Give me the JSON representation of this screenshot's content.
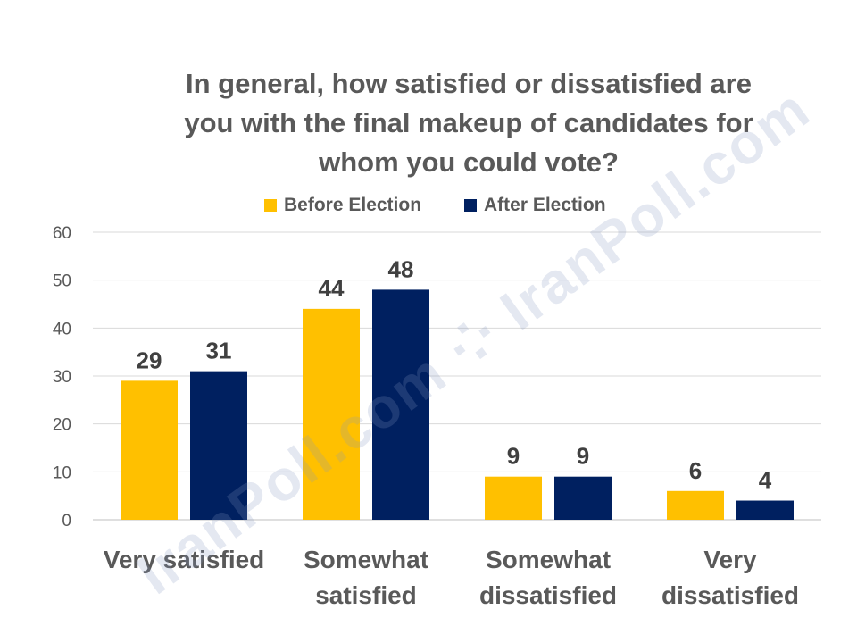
{
  "chart_data": {
    "type": "bar",
    "title_lines": [
      "In general, how satisfied or dissatisfied are",
      "you with the final makeup of candidates for",
      "whom you could vote?"
    ],
    "categories": [
      [
        "Very satisfied"
      ],
      [
        "Somewhat",
        "satisfied"
      ],
      [
        "Somewhat",
        "dissatisfied"
      ],
      [
        "Very",
        "dissatisfied"
      ]
    ],
    "series": [
      {
        "name": "Before Election",
        "color": "#FFC000",
        "values": [
          29,
          44,
          9,
          6
        ]
      },
      {
        "name": "After Election",
        "color": "#002060",
        "values": [
          31,
          48,
          9,
          4
        ]
      }
    ],
    "ylim": [
      0,
      60
    ],
    "yticks": [
      0,
      10,
      20,
      30,
      40,
      50,
      60
    ],
    "grid": true,
    "legend_position": "top",
    "watermark": "IranPoll.com ⁘ IranPoll.com"
  }
}
